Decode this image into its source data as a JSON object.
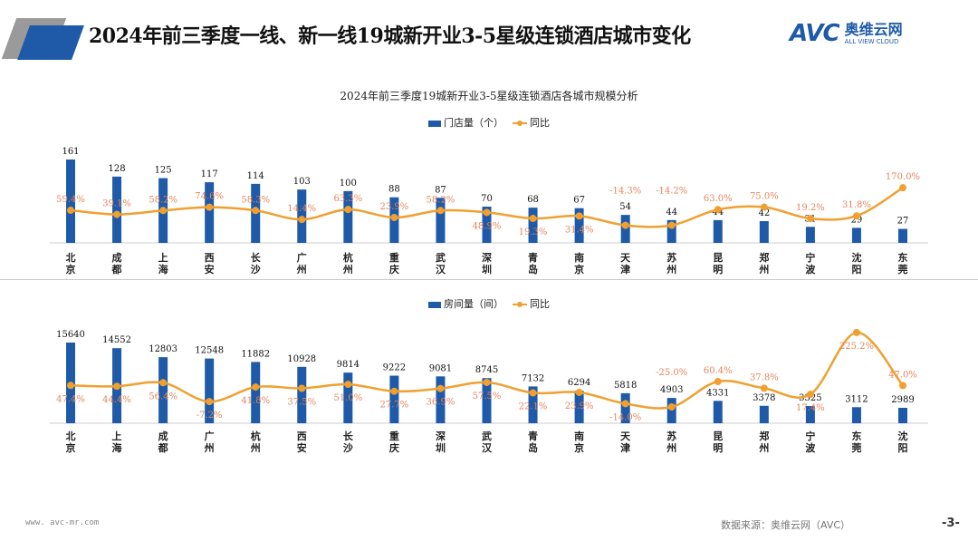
{
  "header": {
    "title": "2024年前三季度一线、新一线19城新开业3-5星级连锁酒店城市变化",
    "logo_text": "AVC",
    "logo_cn": "奥维云网",
    "logo_en": "ALL VIEW CLOUD"
  },
  "footer": {
    "url": "www. avc-mr.com",
    "source": "数据来源：奥维云网（AVC）",
    "page": "-3-"
  },
  "colors": {
    "bar": "#1e5aa8",
    "line": "#f0a030",
    "pct_label": "#e8845a"
  },
  "chart_data": [
    {
      "type": "bar+line",
      "title": "2024年前三季度19城新开业3-5星级连锁酒店各城市规模分析",
      "legend": [
        "门店量（个）",
        "同比"
      ],
      "legend_position": "top",
      "categories": [
        "北京",
        "成都",
        "上海",
        "西安",
        "长沙",
        "广州",
        "杭州",
        "重庆",
        "武汉",
        "深圳",
        "青岛",
        "南京",
        "天津",
        "苏州",
        "昆明",
        "郑州",
        "宁波",
        "沈阳",
        "东莞"
      ],
      "series": [
        {
          "name": "门店量（个）",
          "type": "bar",
          "values": [
            161,
            128,
            125,
            117,
            114,
            103,
            100,
            88,
            87,
            70,
            68,
            67,
            54,
            44,
            44,
            42,
            31,
            29,
            27
          ]
        },
        {
          "name": "同比",
          "type": "line",
          "unit": "%",
          "values": [
            59.4,
            39.1,
            58.2,
            74.6,
            58.3,
            14.4,
            63.3,
            23.9,
            58.2,
            48.9,
            19.3,
            31.4,
            -14.3,
            -14.2,
            63.0,
            75.0,
            19.2,
            31.8,
            170.0
          ]
        }
      ]
    },
    {
      "type": "bar+line",
      "legend": [
        "房间量（间）",
        "同比"
      ],
      "legend_position": "top",
      "categories": [
        "北京",
        "上海",
        "成都",
        "广州",
        "杭州",
        "西安",
        "长沙",
        "重庆",
        "深圳",
        "武汉",
        "青岛",
        "南京",
        "天津",
        "苏州",
        "昆明",
        "郑州",
        "宁波",
        "东莞",
        "沈阳"
      ],
      "series": [
        {
          "name": "房间量（间）",
          "type": "bar",
          "values": [
            15640,
            14552,
            12803,
            12548,
            11882,
            10928,
            9814,
            9222,
            9081,
            8745,
            7132,
            6294,
            5818,
            4903,
            4331,
            3378,
            3325,
            3112,
            2989
          ]
        },
        {
          "name": "同比",
          "type": "line",
          "unit": "%",
          "values": [
            47.4,
            44.4,
            56.4,
            -7.2,
            41.8,
            37.5,
            51.0,
            27.7,
            36.9,
            57.5,
            22.1,
            23.9,
            -14.0,
            -25.0,
            60.4,
            37.8,
            17.4,
            225.2,
            47.0
          ]
        }
      ]
    }
  ]
}
